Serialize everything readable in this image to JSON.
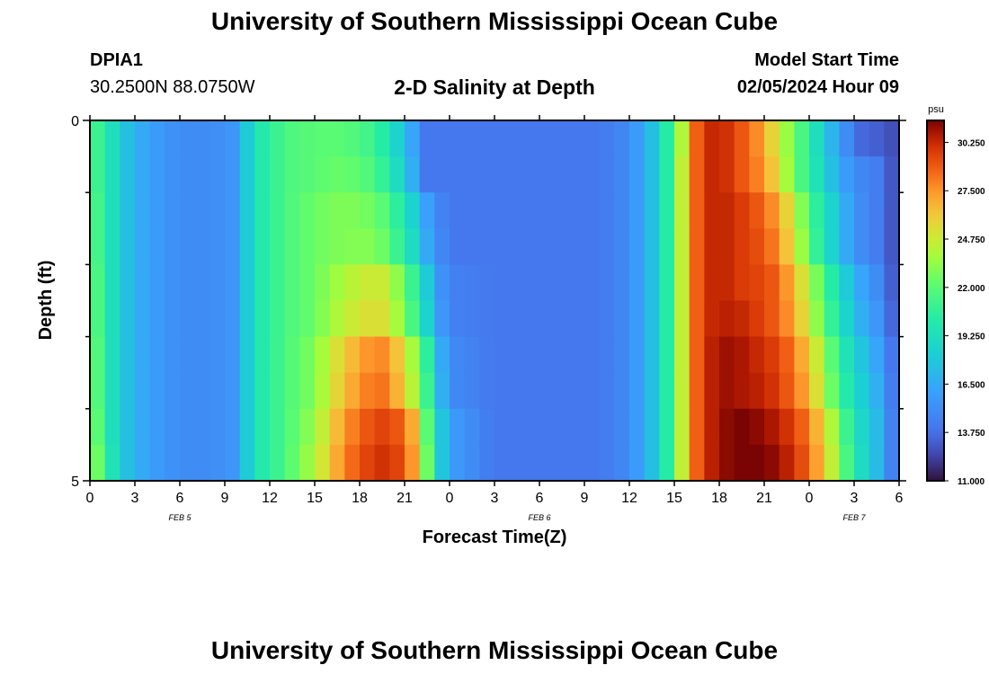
{
  "header": {
    "title": "University of Southern Mississippi Ocean Cube",
    "station": "DPIA1",
    "coords": "30.2500N  88.0750W",
    "chart_title": "2-D Salinity at Depth",
    "start_label": "Model Start Time",
    "start_value": "02/05/2024 Hour 09"
  },
  "footer": {
    "title": "University of Southern Mississippi Ocean Cube"
  },
  "chart_data": {
    "type": "heatmap",
    "title": "2-D Salinity at Depth",
    "xlabel": "Forecast Time(Z)",
    "ylabel": "Depth (ft)",
    "x_tick_labels": [
      "0",
      "3",
      "6",
      "9",
      "12",
      "15",
      "18",
      "21",
      "0",
      "3",
      "6",
      "9",
      "12",
      "15",
      "18",
      "21",
      "0",
      "3",
      "6"
    ],
    "day_labels": [
      {
        "text": "FEB 5",
        "at_hour": 6
      },
      {
        "text": "FEB 6",
        "at_hour": 30
      },
      {
        "text": "FEB 7",
        "at_hour": 51
      }
    ],
    "x_range_hours": [
      0,
      54
    ],
    "y_range_ft": [
      0,
      5
    ],
    "y_tick_labels": [
      "0",
      "5"
    ],
    "colorbar": {
      "unit": "psu",
      "min": 11.0,
      "max": 31.5,
      "tick_labels": [
        "11.000",
        "13.750",
        "16.500",
        "19.250",
        "22.000",
        "24.750",
        "27.500",
        "30.250"
      ],
      "tick_values": [
        11.0,
        13.75,
        16.5,
        19.25,
        22.0,
        24.75,
        27.5,
        30.25
      ]
    },
    "depth_layers_ft": [
      0.25,
      0.75,
      1.25,
      1.75,
      2.25,
      2.75,
      3.25,
      3.75,
      4.25,
      4.75
    ],
    "keyframes_hours": [
      0,
      1,
      2,
      4,
      6,
      8,
      9.5,
      10.5,
      11,
      13,
      15,
      17,
      19,
      20,
      21,
      22,
      22.5,
      23,
      24,
      27,
      30,
      33,
      34,
      35,
      36,
      37,
      38,
      39,
      39.5,
      40,
      41,
      42,
      43,
      44,
      45,
      46,
      47,
      48,
      49,
      50,
      51,
      52,
      53,
      54
    ],
    "keyframe_salinity_psu": [
      [
        21.5,
        20.5,
        18.0,
        16.0,
        15.0,
        15.0,
        15.5,
        18.0,
        19.5,
        21.5,
        22.0,
        22.0,
        21.0,
        19.5,
        17.5,
        15.0,
        14.0,
        14.0,
        14.0,
        14.0,
        14.0,
        14.0,
        14.0,
        14.5,
        15.0,
        16.5,
        18.5,
        22.0,
        24.0,
        27.5,
        30.0,
        30.5,
        29.5,
        28.5,
        27.0,
        24.5,
        22.5,
        20.5,
        18.0,
        16.0,
        14.0,
        13.0,
        13.5,
        12.0
      ],
      [
        21.5,
        20.5,
        18.0,
        16.0,
        15.0,
        15.0,
        15.5,
        18.0,
        19.5,
        21.5,
        22.0,
        22.5,
        21.5,
        20.0,
        18.0,
        15.5,
        14.0,
        14.0,
        14.0,
        14.0,
        14.0,
        14.0,
        14.0,
        14.5,
        15.0,
        16.5,
        18.5,
        22.0,
        24.5,
        27.5,
        30.0,
        30.5,
        29.5,
        28.5,
        27.5,
        25.0,
        22.5,
        20.5,
        18.5,
        16.5,
        15.0,
        14.5,
        14.0,
        12.0
      ],
      [
        22.0,
        20.5,
        18.0,
        16.0,
        15.0,
        15.0,
        15.5,
        18.0,
        19.5,
        21.5,
        22.5,
        23.0,
        22.5,
        21.5,
        19.5,
        17.5,
        16.0,
        15.0,
        14.0,
        14.0,
        14.0,
        14.0,
        14.0,
        14.5,
        15.0,
        16.5,
        18.5,
        22.0,
        24.5,
        27.5,
        30.0,
        30.5,
        30.0,
        29.5,
        28.5,
        27.0,
        24.5,
        21.5,
        19.5,
        17.5,
        15.5,
        14.5,
        14.0,
        12.0
      ],
      [
        22.0,
        20.5,
        18.0,
        16.0,
        15.0,
        15.0,
        15.5,
        18.0,
        19.5,
        21.5,
        22.5,
        23.0,
        23.0,
        22.0,
        20.0,
        18.0,
        16.5,
        15.5,
        14.0,
        14.0,
        14.0,
        14.0,
        14.0,
        14.5,
        15.0,
        16.5,
        18.5,
        22.0,
        24.5,
        27.5,
        30.0,
        30.5,
        30.0,
        29.5,
        29.0,
        27.5,
        25.0,
        22.0,
        19.5,
        17.5,
        15.5,
        14.5,
        14.0,
        12.0
      ],
      [
        22.5,
        20.5,
        18.0,
        16.0,
        15.0,
        15.0,
        15.5,
        18.0,
        19.5,
        21.5,
        22.5,
        24.0,
        25.0,
        24.5,
        22.0,
        20.0,
        18.0,
        16.0,
        14.5,
        14.0,
        14.0,
        14.0,
        14.0,
        14.5,
        15.0,
        16.5,
        18.5,
        22.0,
        24.5,
        27.5,
        30.0,
        30.5,
        30.0,
        29.5,
        29.5,
        28.5,
        26.5,
        24.0,
        21.5,
        19.0,
        17.0,
        15.5,
        14.5,
        12.0
      ],
      [
        22.5,
        20.5,
        18.0,
        16.0,
        15.0,
        15.0,
        15.5,
        18.0,
        19.5,
        21.5,
        22.5,
        24.5,
        25.5,
        25.0,
        22.5,
        20.5,
        18.5,
        16.5,
        14.5,
        14.0,
        14.0,
        14.0,
        14.0,
        14.5,
        15.0,
        16.5,
        18.5,
        22.0,
        24.5,
        27.5,
        30.0,
        30.5,
        30.5,
        30.0,
        29.5,
        28.5,
        27.0,
        24.5,
        22.0,
        19.5,
        17.5,
        16.0,
        15.0,
        12.0
      ],
      [
        23.0,
        20.5,
        18.0,
        16.0,
        15.0,
        15.0,
        15.5,
        18.0,
        19.5,
        21.5,
        23.0,
        26.0,
        28.0,
        27.5,
        25.0,
        22.5,
        20.5,
        18.0,
        15.0,
        14.0,
        14.0,
        14.0,
        14.0,
        14.5,
        15.0,
        16.5,
        18.5,
        22.0,
        24.5,
        27.5,
        30.0,
        31.0,
        31.0,
        30.5,
        30.0,
        29.5,
        28.0,
        26.0,
        23.5,
        20.5,
        18.5,
        17.0,
        15.5,
        12.5
      ],
      [
        23.0,
        20.5,
        18.0,
        16.0,
        15.0,
        15.0,
        15.5,
        18.0,
        19.5,
        21.5,
        23.0,
        26.5,
        28.5,
        28.0,
        25.5,
        23.0,
        21.0,
        18.5,
        15.0,
        14.0,
        14.0,
        14.0,
        14.0,
        14.5,
        15.0,
        16.5,
        18.5,
        22.0,
        24.5,
        27.5,
        30.0,
        31.0,
        31.0,
        30.5,
        30.5,
        29.5,
        28.5,
        26.5,
        24.0,
        21.0,
        19.0,
        17.5,
        16.0,
        12.5
      ],
      [
        23.5,
        20.5,
        18.0,
        16.0,
        15.0,
        15.0,
        15.5,
        18.0,
        19.5,
        21.5,
        23.5,
        27.5,
        29.5,
        29.5,
        28.5,
        25.5,
        22.0,
        19.5,
        16.0,
        14.0,
        14.0,
        14.0,
        14.0,
        14.5,
        15.0,
        16.5,
        18.5,
        22.0,
        24.5,
        27.5,
        30.0,
        31.0,
        31.5,
        31.5,
        31.0,
        30.5,
        29.5,
        28.0,
        25.5,
        22.5,
        19.5,
        18.0,
        16.5,
        12.5
      ],
      [
        24.0,
        21.0,
        18.0,
        16.0,
        15.0,
        15.0,
        15.5,
        18.0,
        19.5,
        21.5,
        24.0,
        28.0,
        30.0,
        30.0,
        29.0,
        26.0,
        22.5,
        19.5,
        16.0,
        14.0,
        14.0,
        14.0,
        14.0,
        14.5,
        15.0,
        16.5,
        18.5,
        22.0,
        24.5,
        27.5,
        30.0,
        31.0,
        31.5,
        31.5,
        31.5,
        31.0,
        30.0,
        28.5,
        26.0,
        23.0,
        20.0,
        18.0,
        16.5,
        12.5
      ]
    ]
  }
}
